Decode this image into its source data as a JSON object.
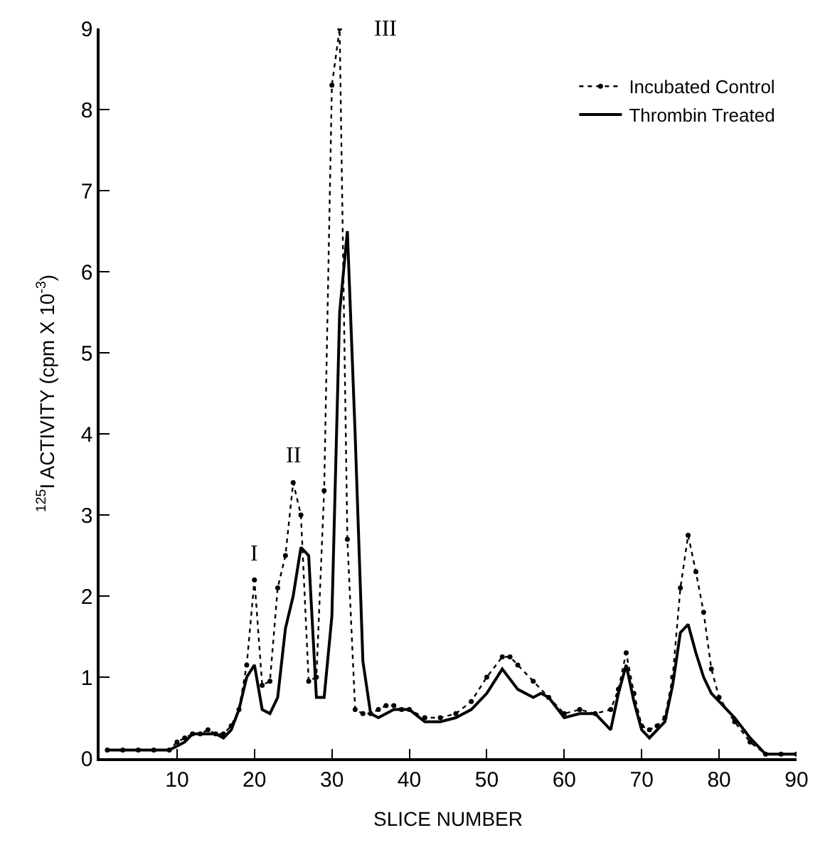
{
  "chart_data": {
    "type": "line",
    "xlabel": "SLICE NUMBER",
    "ylabel": "$^{125}$I ACTIVITY (cpm X 10$^{-3}$)",
    "xlim": [
      0,
      90
    ],
    "xticks": [
      10,
      20,
      30,
      40,
      50,
      60,
      70,
      80,
      90
    ],
    "ylim": [
      0,
      9
    ],
    "yticks": [
      0,
      1,
      2,
      3,
      4,
      5,
      6,
      7,
      8,
      9
    ],
    "legend": "top right",
    "annotations": [
      {
        "text": "I",
        "x": 20,
        "y": 2.2
      },
      {
        "text": "II",
        "x": 25,
        "y": 3.4
      },
      {
        "text": "III",
        "x": 31,
        "y": 9
      }
    ],
    "series": [
      {
        "name": "Incubated Control",
        "color": "#000000",
        "line_style": "dotted",
        "marker": "circle",
        "x": [
          1,
          3,
          5,
          7,
          9,
          10,
          11,
          12,
          13,
          14,
          15,
          16,
          17,
          18,
          19,
          20,
          21,
          22,
          23,
          24,
          25,
          26,
          27,
          28,
          29,
          30,
          31,
          32,
          33,
          34,
          35,
          36,
          37,
          38,
          39,
          40,
          42,
          44,
          46,
          48,
          50,
          52,
          53,
          54,
          56,
          58,
          60,
          62,
          64,
          66,
          67,
          68,
          69,
          70,
          71,
          72,
          73,
          74,
          75,
          76,
          77,
          78,
          79,
          80,
          82,
          84,
          86,
          88,
          90
        ],
        "values": [
          0.1,
          0.1,
          0.1,
          0.1,
          0.1,
          0.2,
          0.25,
          0.3,
          0.3,
          0.35,
          0.3,
          0.3,
          0.4,
          0.6,
          1.15,
          2.2,
          0.9,
          0.95,
          2.1,
          2.5,
          3.4,
          3.0,
          0.95,
          1.0,
          3.3,
          8.3,
          9.0,
          2.7,
          0.6,
          0.55,
          0.55,
          0.6,
          0.65,
          0.65,
          0.6,
          0.6,
          0.5,
          0.5,
          0.55,
          0.7,
          1.0,
          1.25,
          1.25,
          1.15,
          0.95,
          0.75,
          0.55,
          0.6,
          0.55,
          0.6,
          0.85,
          1.3,
          0.8,
          0.4,
          0.35,
          0.4,
          0.5,
          1.0,
          2.1,
          2.75,
          2.3,
          1.8,
          1.1,
          0.75,
          0.45,
          0.2,
          0.05,
          0.05,
          0.05
        ]
      },
      {
        "name": "Thrombin Treated",
        "color": "#000000",
        "line_style": "solid",
        "marker": "none",
        "x": [
          1,
          3,
          5,
          7,
          9,
          10,
          11,
          12,
          13,
          14,
          15,
          16,
          17,
          18,
          19,
          20,
          21,
          22,
          23,
          24,
          25,
          26,
          27,
          28,
          29,
          30,
          31,
          32,
          33,
          34,
          35,
          36,
          37,
          38,
          40,
          42,
          44,
          46,
          48,
          50,
          52,
          54,
          56,
          57,
          58,
          60,
          62,
          64,
          66,
          67,
          68,
          69,
          70,
          71,
          72,
          73,
          74,
          75,
          76,
          77,
          78,
          79,
          80,
          82,
          84,
          86,
          88,
          90
        ],
        "values": [
          0.1,
          0.1,
          0.1,
          0.1,
          0.1,
          0.15,
          0.2,
          0.3,
          0.3,
          0.3,
          0.3,
          0.25,
          0.35,
          0.6,
          1.0,
          1.15,
          0.6,
          0.55,
          0.75,
          1.6,
          2.0,
          2.6,
          2.5,
          0.75,
          0.75,
          1.75,
          5.5,
          6.5,
          4.0,
          1.2,
          0.55,
          0.5,
          0.55,
          0.6,
          0.6,
          0.45,
          0.45,
          0.5,
          0.6,
          0.8,
          1.1,
          0.85,
          0.75,
          0.8,
          0.75,
          0.5,
          0.55,
          0.55,
          0.35,
          0.8,
          1.15,
          0.7,
          0.35,
          0.25,
          0.35,
          0.45,
          0.9,
          1.55,
          1.65,
          1.3,
          1.0,
          0.8,
          0.7,
          0.5,
          0.25,
          0.05,
          0.05,
          0.05
        ]
      }
    ]
  }
}
